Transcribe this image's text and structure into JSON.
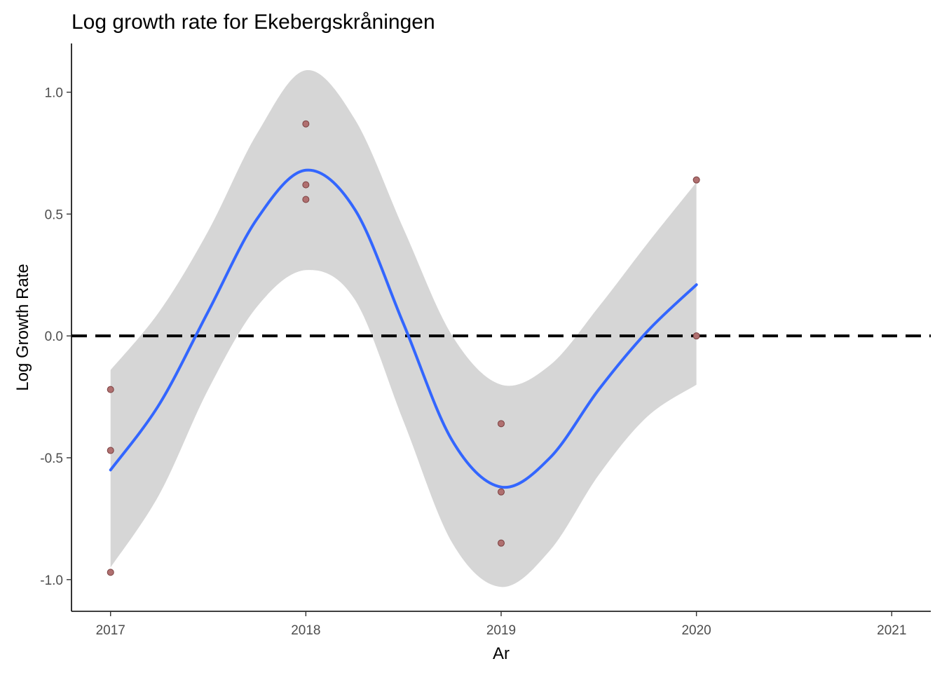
{
  "chart_data": {
    "type": "scatter",
    "title": "Log growth rate for Ekebergskråningen",
    "xlabel": "Ar",
    "ylabel": "Log Growth Rate",
    "xlim": [
      2016.8,
      2021.2
    ],
    "ylim": [
      -1.13,
      1.2
    ],
    "x_ticks": [
      2017,
      2018,
      2019,
      2020,
      2021
    ],
    "x_tick_labels": [
      "2017",
      "2018",
      "2019",
      "2020",
      "2021"
    ],
    "y_ticks": [
      -1.0,
      -0.5,
      0.0,
      0.5,
      1.0
    ],
    "y_tick_labels": [
      "-1.0",
      "-0.5",
      "0.0",
      "0.5",
      "1.0"
    ],
    "grid": false,
    "legend": "none",
    "reference_line": {
      "y": 0.0,
      "style": "dashed",
      "color": "#000000"
    },
    "points": {
      "color": "#b07070",
      "x": [
        2017,
        2017,
        2017,
        2018,
        2018,
        2018,
        2019,
        2019,
        2019,
        2020,
        2020
      ],
      "y": [
        -0.22,
        -0.47,
        -0.97,
        0.87,
        0.62,
        0.56,
        -0.36,
        -0.64,
        -0.85,
        0.64,
        0.0
      ]
    },
    "smooth": {
      "color": "#3366ff",
      "x": [
        2017.0,
        2017.25,
        2017.5,
        2017.75,
        2018.0,
        2018.25,
        2018.5,
        2018.75,
        2019.0,
        2019.25,
        2019.5,
        2019.75,
        2020.0
      ],
      "y": [
        -0.55,
        -0.28,
        0.1,
        0.48,
        0.68,
        0.52,
        0.05,
        -0.43,
        -0.62,
        -0.5,
        -0.22,
        0.02,
        0.21
      ],
      "lower": [
        -0.95,
        -0.65,
        -0.22,
        0.12,
        0.27,
        0.15,
        -0.35,
        -0.85,
        -1.03,
        -0.88,
        -0.57,
        -0.33,
        -0.2
      ],
      "upper": [
        -0.14,
        0.1,
        0.43,
        0.83,
        1.09,
        0.89,
        0.44,
        0.0,
        -0.2,
        -0.12,
        0.12,
        0.38,
        0.63
      ],
      "band_color": "#d6d6d6"
    }
  }
}
